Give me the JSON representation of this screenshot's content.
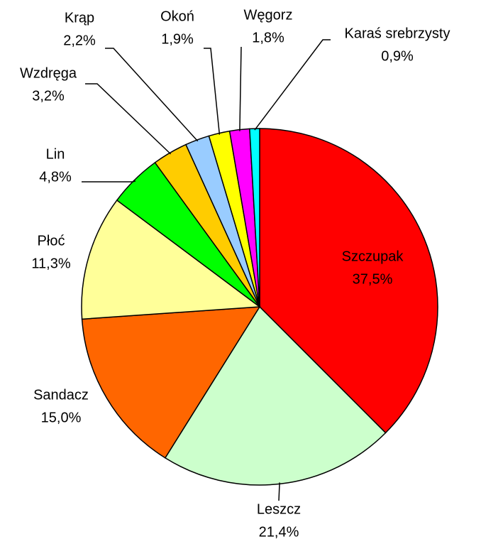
{
  "chart_data": {
    "type": "pie",
    "categories": [
      "Szczupak",
      "Leszcz",
      "Sandacz",
      "Płoć",
      "Lin",
      "Wzdręga",
      "Krąp",
      "Okoń",
      "Węgorz",
      "Karaś srebrzysty"
    ],
    "values": [
      37.5,
      21.4,
      15.0,
      11.3,
      4.8,
      3.2,
      2.2,
      1.9,
      1.8,
      0.9
    ],
    "value_labels": [
      "37,5%",
      "21,4%",
      "15,0%",
      "11,3%",
      "4,8%",
      "3,2%",
      "2,2%",
      "1,9%",
      "1,8%",
      "0,9%"
    ],
    "colors": [
      "#ff0000",
      "#ccffcc",
      "#ff6600",
      "#ffff99",
      "#00ff00",
      "#ffcc00",
      "#99ccff",
      "#ffff00",
      "#ff00ff",
      "#00ffff"
    ]
  }
}
